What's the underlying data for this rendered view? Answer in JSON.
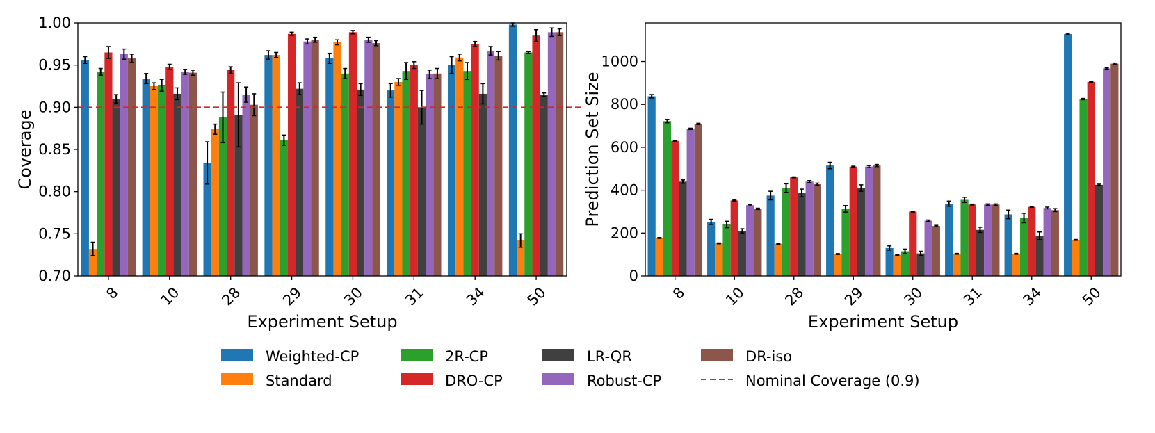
{
  "chart_data": [
    {
      "type": "bar",
      "xlabel": "Experiment Setup",
      "ylabel": "Coverage",
      "ylim": [
        0.7,
        1.0
      ],
      "yticks": [
        "0.70",
        "0.75",
        "0.80",
        "0.85",
        "0.90",
        "0.95",
        "1.00"
      ],
      "categories": [
        "8",
        "10",
        "28",
        "29",
        "30",
        "31",
        "34",
        "50"
      ],
      "reference_line": {
        "y": 0.9,
        "label": "Nominal Coverage (0.9)",
        "color": "#d62728",
        "style": "dashed"
      },
      "series": [
        {
          "name": "Weighted-CP",
          "color": "#1f77b4",
          "values": [
            0.956,
            0.934,
            0.834,
            0.962,
            0.958,
            0.92,
            0.95,
            0.998
          ],
          "errors": [
            0.004,
            0.006,
            0.025,
            0.005,
            0.006,
            0.008,
            0.01,
            0.002
          ]
        },
        {
          "name": "Standard",
          "color": "#ff7f0e",
          "values": [
            0.732,
            0.925,
            0.874,
            0.962,
            0.977,
            0.93,
            0.959,
            0.742
          ],
          "errors": [
            0.008,
            0.004,
            0.006,
            0.003,
            0.003,
            0.004,
            0.004,
            0.008
          ]
        },
        {
          "name": "2R-CP",
          "color": "#2ca02c",
          "values": [
            0.942,
            0.926,
            0.888,
            0.861,
            0.94,
            0.943,
            0.943,
            0.965
          ],
          "errors": [
            0.004,
            0.007,
            0.03,
            0.006,
            0.006,
            0.01,
            0.01,
            0.001
          ]
        },
        {
          "name": "DRO-CP",
          "color": "#d62728",
          "values": [
            0.965,
            0.948,
            0.944,
            0.987,
            0.989,
            0.95,
            0.975,
            0.985
          ],
          "errors": [
            0.007,
            0.003,
            0.004,
            0.002,
            0.002,
            0.004,
            0.003,
            0.007
          ]
        },
        {
          "name": "LR-QR",
          "color": "#404040",
          "values": [
            0.91,
            0.916,
            0.891,
            0.922,
            0.921,
            0.9,
            0.916,
            0.915
          ],
          "errors": [
            0.005,
            0.007,
            0.038,
            0.007,
            0.007,
            0.02,
            0.012,
            0.002
          ]
        },
        {
          "name": "Robust-CP",
          "color": "#9467bd",
          "values": [
            0.963,
            0.942,
            0.915,
            0.978,
            0.98,
            0.939,
            0.967,
            0.989
          ],
          "errors": [
            0.006,
            0.003,
            0.009,
            0.003,
            0.003,
            0.005,
            0.005,
            0.005
          ]
        },
        {
          "name": "DR-iso",
          "color": "#8c564b",
          "values": [
            0.958,
            0.941,
            0.903,
            0.98,
            0.976,
            0.94,
            0.961,
            0.989
          ],
          "errors": [
            0.005,
            0.003,
            0.013,
            0.003,
            0.003,
            0.006,
            0.005,
            0.004
          ]
        }
      ]
    },
    {
      "type": "bar",
      "xlabel": "Experiment Setup",
      "ylabel": "Prediction Set Size",
      "ylim": [
        0,
        1180
      ],
      "yticks": [
        "0",
        "200",
        "400",
        "600",
        "800",
        "1000"
      ],
      "categories": [
        "8",
        "10",
        "28",
        "29",
        "30",
        "31",
        "34",
        "50"
      ],
      "series": [
        {
          "name": "Weighted-CP",
          "color": "#1f77b4",
          "values": [
            838,
            252,
            375,
            515,
            130,
            337,
            287,
            1128
          ],
          "errors": [
            8,
            12,
            20,
            15,
            10,
            12,
            20,
            3
          ]
        },
        {
          "name": "Standard",
          "color": "#ff7f0e",
          "values": [
            177,
            152,
            150,
            102,
            98,
            103,
            103,
            168
          ],
          "errors": [
            2,
            2,
            2,
            2,
            2,
            2,
            2,
            2
          ]
        },
        {
          "name": "2R-CP",
          "color": "#2ca02c",
          "values": [
            722,
            240,
            410,
            313,
            115,
            355,
            270,
            825
          ],
          "errors": [
            8,
            15,
            20,
            15,
            10,
            12,
            22,
            3
          ]
        },
        {
          "name": "DRO-CP",
          "color": "#d62728",
          "values": [
            630,
            352,
            460,
            510,
            300,
            333,
            322,
            905
          ],
          "errors": [
            2,
            2,
            2,
            2,
            2,
            2,
            2,
            2
          ]
        },
        {
          "name": "LR-QR",
          "color": "#404040",
          "values": [
            440,
            210,
            387,
            410,
            105,
            215,
            187,
            425
          ],
          "errors": [
            8,
            10,
            18,
            15,
            10,
            12,
            18,
            3
          ]
        },
        {
          "name": "Robust-CP",
          "color": "#9467bd",
          "values": [
            686,
            330,
            440,
            510,
            258,
            333,
            317,
            968
          ],
          "errors": [
            3,
            3,
            5,
            5,
            3,
            3,
            4,
            3
          ]
        },
        {
          "name": "DR-iso",
          "color": "#8c564b",
          "values": [
            709,
            313,
            428,
            515,
            233,
            333,
            307,
            990
          ],
          "errors": [
            3,
            3,
            5,
            5,
            3,
            3,
            7,
            3
          ]
        }
      ]
    }
  ]
}
